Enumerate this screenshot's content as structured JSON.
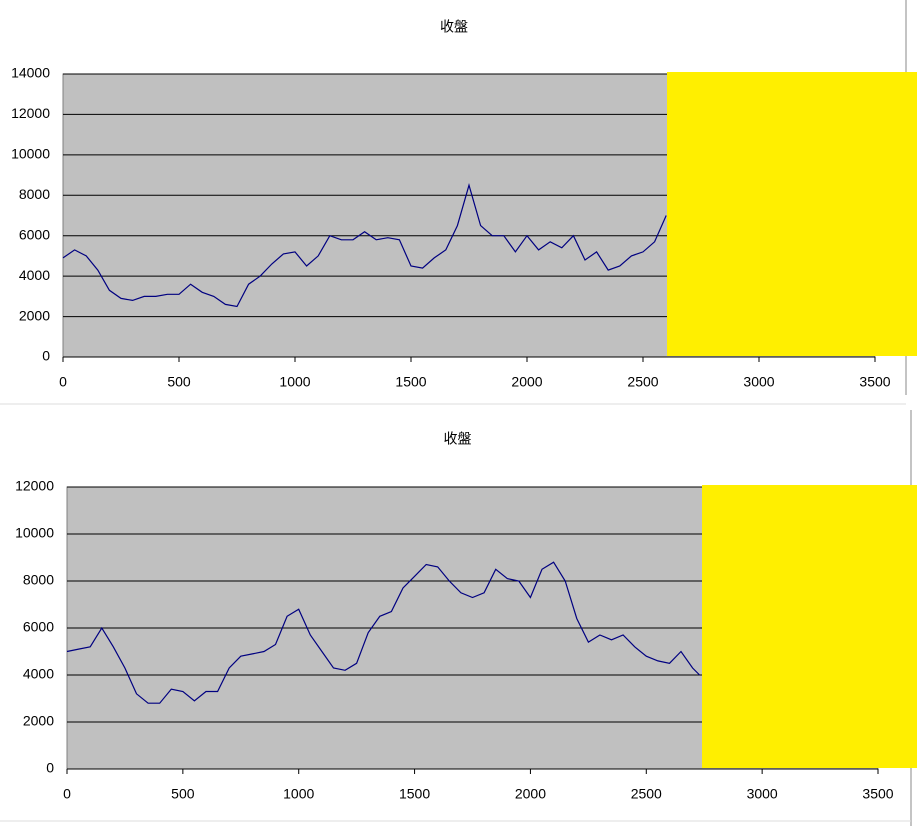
{
  "chart_data": [
    {
      "type": "line",
      "title": "收盤",
      "x": [
        0,
        50,
        100,
        150,
        200,
        250,
        300,
        350,
        400,
        450,
        500,
        550,
        600,
        650,
        700,
        750,
        800,
        850,
        900,
        950,
        1000,
        1050,
        1100,
        1150,
        1200,
        1250,
        1300,
        1350,
        1400,
        1450,
        1500,
        1550,
        1600,
        1650,
        1700,
        1750,
        1800,
        1850,
        1900,
        1950,
        2000,
        2050,
        2100,
        2150,
        2200,
        2250,
        2300,
        2350,
        2400,
        2450,
        2500,
        2550,
        2600
      ],
      "values": [
        4900,
        5300,
        5000,
        4300,
        3300,
        2900,
        2800,
        3000,
        3000,
        3100,
        3100,
        3600,
        3200,
        3000,
        2600,
        2500,
        3600,
        4000,
        4600,
        5100,
        5200,
        4500,
        5000,
        6000,
        5800,
        5800,
        6200,
        5800,
        5900,
        5800,
        4500,
        4400,
        4900,
        5300,
        6500,
        8500,
        6500,
        6000,
        6000,
        5200,
        6000,
        5300,
        5700,
        5400,
        6000,
        4800,
        5200,
        4300,
        4500,
        5000,
        5200,
        5700,
        7000
      ],
      "color": "#000080",
      "plot_background": "#c0c0c0",
      "grid": true,
      "xlim": [
        0,
        3500
      ],
      "xticks": [
        0,
        500,
        1000,
        1500,
        2000,
        2500,
        3000,
        3500
      ],
      "ylim": [
        0,
        14000
      ],
      "yticks": [
        0,
        2000,
        4000,
        6000,
        8000,
        10000,
        12000,
        14000
      ]
    },
    {
      "type": "line",
      "title": "收盤",
      "x": [
        0,
        50,
        100,
        150,
        200,
        250,
        300,
        350,
        400,
        450,
        500,
        550,
        600,
        650,
        700,
        750,
        800,
        850,
        900,
        950,
        1000,
        1050,
        1100,
        1150,
        1200,
        1250,
        1300,
        1350,
        1400,
        1450,
        1500,
        1550,
        1600,
        1650,
        1700,
        1750,
        1800,
        1850,
        1900,
        1950,
        2000,
        2050,
        2100,
        2150,
        2200,
        2250,
        2300,
        2350,
        2400,
        2450,
        2500,
        2550,
        2600,
        2650,
        2700,
        2730
      ],
      "values": [
        5000,
        5100,
        5200,
        6000,
        5200,
        4300,
        3200,
        2800,
        2800,
        3400,
        3300,
        2900,
        3300,
        3300,
        4300,
        4800,
        4900,
        5000,
        5300,
        6500,
        6800,
        5700,
        5000,
        4300,
        4200,
        4500,
        5800,
        6500,
        6700,
        7700,
        8200,
        8700,
        8600,
        8000,
        7500,
        7300,
        7500,
        8500,
        8100,
        8000,
        7300,
        8500,
        8800,
        8000,
        6400,
        5400,
        5700,
        5500,
        5700,
        5200,
        4800,
        4600,
        4500,
        5000,
        4300,
        4000
      ],
      "color": "#000080",
      "plot_background": "#c0c0c0",
      "grid": true,
      "xlim": [
        0,
        3500
      ],
      "xticks": [
        0,
        500,
        1000,
        1500,
        2000,
        2500,
        3000,
        3500
      ],
      "ylim": [
        0,
        12000
      ],
      "yticks": [
        0,
        2000,
        4000,
        6000,
        8000,
        10000,
        12000
      ]
    }
  ]
}
